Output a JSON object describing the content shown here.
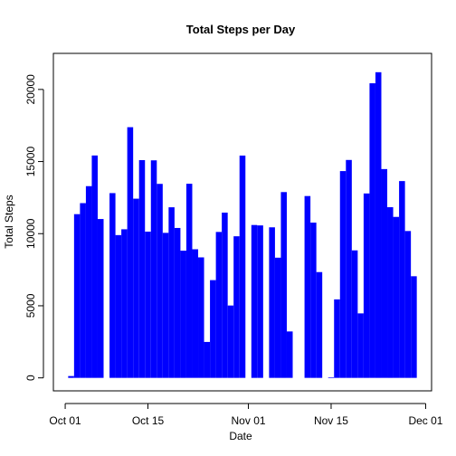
{
  "chart_data": {
    "type": "bar",
    "title": "Total Steps per Day",
    "xlabel": "Date",
    "ylabel": "Total Steps",
    "bar_color": "#0000ff",
    "x_start": "2012-10-01",
    "x_end": "2012-11-30",
    "xlim": [
      "2012-09-29",
      "2012-12-02"
    ],
    "ylim": [
      -900,
      22500
    ],
    "x_ticks": [
      {
        "date": "2012-10-01",
        "label": "Oct 01"
      },
      {
        "date": "2012-10-15",
        "label": "Oct 15"
      },
      {
        "date": "2012-11-01",
        "label": "Nov 01"
      },
      {
        "date": "2012-11-15",
        "label": "Nov 15"
      },
      {
        "date": "2012-12-01",
        "label": "Dec 01"
      }
    ],
    "y_ticks": [
      0,
      5000,
      10000,
      15000,
      20000
    ],
    "values": [
      0,
      126,
      11352,
      12116,
      13294,
      15420,
      11015,
      0,
      12811,
      9900,
      10304,
      17382,
      12426,
      15098,
      10139,
      15084,
      13452,
      10056,
      11829,
      10395,
      8821,
      13460,
      8918,
      8355,
      2492,
      6778,
      10119,
      11458,
      5018,
      9819,
      15414,
      0,
      10600,
      10571,
      0,
      10439,
      8334,
      12883,
      3219,
      0,
      0,
      12608,
      10765,
      7336,
      0,
      41,
      5441,
      14339,
      15110,
      8841,
      4472,
      12787,
      20427,
      21194,
      14478,
      11834,
      11162,
      13646,
      10183,
      7047,
      0
    ]
  }
}
